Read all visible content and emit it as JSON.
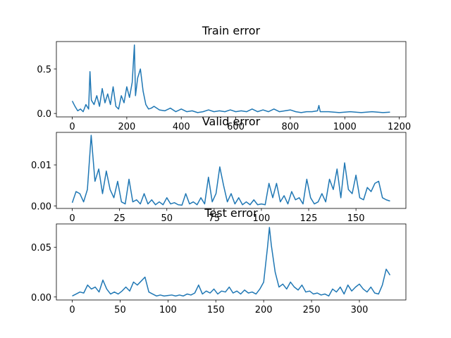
{
  "chart_data": [
    {
      "type": "line",
      "title": "Train error",
      "color": "#1f77b4",
      "x": [
        0,
        10,
        20,
        30,
        40,
        50,
        60,
        65,
        70,
        80,
        90,
        100,
        110,
        120,
        130,
        140,
        150,
        160,
        170,
        180,
        190,
        200,
        210,
        220,
        228,
        232,
        240,
        250,
        260,
        270,
        280,
        290,
        300,
        320,
        340,
        360,
        380,
        400,
        420,
        440,
        460,
        480,
        500,
        520,
        540,
        560,
        580,
        600,
        620,
        640,
        660,
        680,
        700,
        720,
        740,
        760,
        780,
        800,
        820,
        840,
        860,
        880,
        900,
        905,
        910,
        940,
        980,
        1020,
        1060,
        1100,
        1140,
        1166
      ],
      "values": [
        0.14,
        0.08,
        0.03,
        0.05,
        0.02,
        0.1,
        0.05,
        0.47,
        0.15,
        0.1,
        0.2,
        0.08,
        0.28,
        0.12,
        0.22,
        0.1,
        0.3,
        0.08,
        0.05,
        0.2,
        0.12,
        0.3,
        0.18,
        0.35,
        0.77,
        0.2,
        0.4,
        0.5,
        0.25,
        0.1,
        0.05,
        0.06,
        0.08,
        0.04,
        0.03,
        0.06,
        0.02,
        0.05,
        0.02,
        0.03,
        0.01,
        0.02,
        0.04,
        0.02,
        0.03,
        0.02,
        0.04,
        0.02,
        0.03,
        0.02,
        0.05,
        0.02,
        0.04,
        0.02,
        0.05,
        0.02,
        0.03,
        0.04,
        0.02,
        0.01,
        0.02,
        0.02,
        0.03,
        0.09,
        0.02,
        0.02,
        0.01,
        0.02,
        0.01,
        0.02,
        0.01,
        0.015
      ],
      "xlim": [
        -58.3,
        1224.3
      ],
      "ylim": [
        -0.0385,
        0.8085
      ],
      "xticks": [
        0,
        200,
        400,
        600,
        800,
        1000,
        1200
      ],
      "yticks": [
        {
          "value": 0,
          "label": "0.0"
        },
        0.5
      ]
    },
    {
      "type": "line",
      "title": "Valid error",
      "color": "#1f77b4",
      "x": [
        0,
        2,
        4,
        6,
        8,
        10,
        12,
        14,
        16,
        18,
        20,
        22,
        24,
        26,
        28,
        30,
        32,
        34,
        36,
        38,
        40,
        42,
        44,
        46,
        48,
        50,
        52,
        54,
        56,
        58,
        60,
        62,
        64,
        66,
        68,
        70,
        72,
        74,
        76,
        78,
        80,
        82,
        84,
        86,
        88,
        90,
        92,
        94,
        96,
        98,
        100,
        102,
        104,
        106,
        108,
        110,
        112,
        114,
        116,
        118,
        120,
        122,
        124,
        126,
        128,
        130,
        132,
        134,
        136,
        138,
        140,
        142,
        144,
        146,
        148,
        150,
        152,
        154,
        156,
        158,
        160,
        162,
        164,
        166,
        168
      ],
      "values": [
        0.0008,
        0.0035,
        0.003,
        0.001,
        0.004,
        0.0172,
        0.006,
        0.009,
        0.003,
        0.0085,
        0.004,
        0.002,
        0.006,
        0.001,
        0.0005,
        0.0065,
        0.001,
        0.0015,
        0.0005,
        0.003,
        0.0005,
        0.0015,
        0.0003,
        0.001,
        0.0003,
        0.002,
        0.0005,
        0.0008,
        0.0003,
        0.0002,
        0.003,
        0.0005,
        0.001,
        0.0003,
        0.002,
        0.0005,
        0.007,
        0.001,
        0.003,
        0.0095,
        0.005,
        0.001,
        0.003,
        0.0005,
        0.002,
        0.0003,
        0.001,
        0.0003,
        0.0015,
        0.0003,
        0.0005,
        0.0003,
        0.0055,
        0.002,
        0.0055,
        0.001,
        0.0025,
        0.0005,
        0.0035,
        0.0015,
        0.002,
        0.0005,
        0.0065,
        0.002,
        0.0005,
        0.001,
        0.003,
        0.001,
        0.0065,
        0.004,
        0.009,
        0.002,
        0.0105,
        0.004,
        0.003,
        0.0075,
        0.002,
        0.0015,
        0.0045,
        0.0035,
        0.0055,
        0.006,
        0.002,
        0.0015,
        0.0012
      ],
      "xlim": [
        -8.4,
        176.4
      ],
      "ylim": [
        -0.0006,
        0.0179
      ],
      "xticks": [
        0,
        25,
        50,
        75,
        100,
        125,
        150
      ],
      "yticks": [
        {
          "value": 0,
          "label": "0.00"
        },
        0.01
      ]
    },
    {
      "type": "line",
      "title": "Test error",
      "color": "#1f77b4",
      "x": [
        0,
        4,
        8,
        12,
        16,
        20,
        24,
        28,
        32,
        36,
        40,
        44,
        48,
        52,
        56,
        60,
        64,
        68,
        72,
        76,
        80,
        84,
        88,
        92,
        96,
        100,
        104,
        108,
        112,
        116,
        120,
        124,
        128,
        132,
        136,
        140,
        144,
        148,
        152,
        156,
        160,
        164,
        168,
        172,
        176,
        180,
        184,
        188,
        192,
        196,
        200,
        204,
        206,
        208,
        212,
        216,
        220,
        224,
        228,
        232,
        236,
        240,
        244,
        248,
        252,
        256,
        260,
        264,
        268,
        272,
        276,
        280,
        284,
        288,
        292,
        296,
        300,
        304,
        308,
        312,
        316,
        320,
        324,
        328,
        332
      ],
      "values": [
        0.001,
        0.003,
        0.005,
        0.004,
        0.012,
        0.008,
        0.01,
        0.005,
        0.017,
        0.008,
        0.003,
        0.005,
        0.003,
        0.006,
        0.01,
        0.006,
        0.015,
        0.012,
        0.016,
        0.02,
        0.005,
        0.003,
        0.001,
        0.002,
        0.001,
        0.0015,
        0.002,
        0.001,
        0.002,
        0.001,
        0.003,
        0.002,
        0.004,
        0.012,
        0.003,
        0.006,
        0.004,
        0.008,
        0.003,
        0.006,
        0.005,
        0.01,
        0.004,
        0.006,
        0.003,
        0.007,
        0.004,
        0.005,
        0.003,
        0.008,
        0.015,
        0.05,
        0.07,
        0.052,
        0.025,
        0.01,
        0.013,
        0.008,
        0.015,
        0.01,
        0.007,
        0.012,
        0.005,
        0.006,
        0.003,
        0.004,
        0.002,
        0.003,
        0.001,
        0.008,
        0.005,
        0.01,
        0.003,
        0.012,
        0.006,
        0.01,
        0.013,
        0.008,
        0.005,
        0.01,
        0.004,
        0.003,
        0.012,
        0.028,
        0.022
      ],
      "xlim": [
        -16.6,
        348.6
      ],
      "ylim": [
        -0.003,
        0.0735
      ],
      "xticks": [
        0,
        50,
        100,
        150,
        200,
        250,
        300
      ],
      "yticks": [
        {
          "value": 0,
          "label": "0.00"
        },
        0.05
      ]
    }
  ]
}
